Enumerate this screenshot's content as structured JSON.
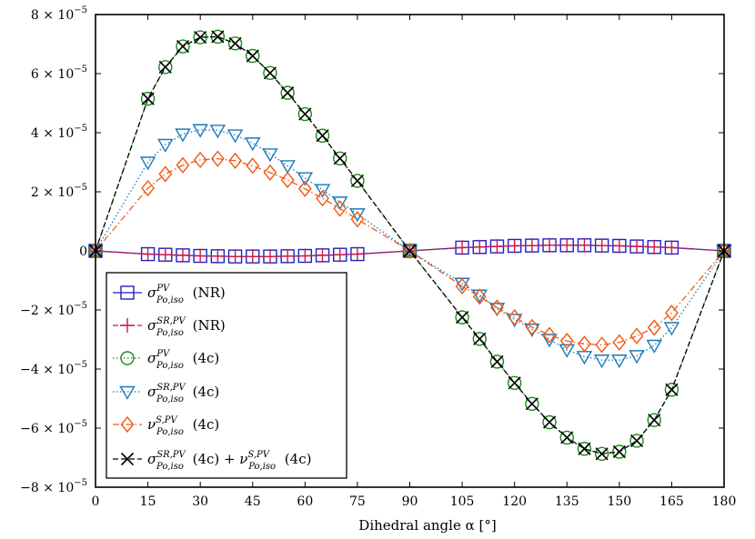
{
  "chart_data": {
    "type": "line",
    "xlabel": "Dihedral angle α [°]",
    "ylabel": "",
    "xlim": [
      0,
      180
    ],
    "ylim": [
      -8e-05,
      8e-05
    ],
    "x_ticks": [
      0,
      15,
      30,
      45,
      60,
      75,
      90,
      105,
      120,
      135,
      150,
      165,
      180
    ],
    "y_ticks": [
      {
        "value": 8e-05,
        "mant": "8 × 10",
        "exp": "−5"
      },
      {
        "value": 6e-05,
        "mant": "6 × 10",
        "exp": "−5"
      },
      {
        "value": 4e-05,
        "mant": "4 × 10",
        "exp": "−5"
      },
      {
        "value": 2e-05,
        "mant": "2 × 10",
        "exp": "−5"
      },
      {
        "value": 0,
        "mant": "0",
        "exp": ""
      },
      {
        "value": -2e-05,
        "mant": "−2 × 10",
        "exp": "−5"
      },
      {
        "value": -4e-05,
        "mant": "−4 × 10",
        "exp": "−5"
      },
      {
        "value": -6e-05,
        "mant": "−6 × 10",
        "exp": "−5"
      },
      {
        "value": -8e-05,
        "mant": "−8 × 10",
        "exp": "−5"
      }
    ],
    "grid": false,
    "legend_position": "bottom-left",
    "series": [
      {
        "name": "σ^{PV}_{Po,iso} (NR)",
        "label": {
          "sym": "σ",
          "sup": "PV",
          "sub": "Po,iso",
          "tail": "(NR)"
        },
        "color": "#1f1fc8",
        "marker": "square",
        "linestyle": "solid",
        "x": [
          0,
          15,
          20,
          25,
          30,
          35,
          40,
          45,
          50,
          55,
          60,
          65,
          70,
          75,
          90,
          105,
          110,
          115,
          120,
          125,
          130,
          135,
          140,
          145,
          150,
          155,
          160,
          165,
          180
        ],
        "y": [
          0,
          -1.1e-06,
          -1.3e-06,
          -1.5e-06,
          -1.7e-06,
          -1.8e-06,
          -1.9e-06,
          -1.9e-06,
          -1.9e-06,
          -1.8e-06,
          -1.7e-06,
          -1.5e-06,
          -1.3e-06,
          -1.1e-06,
          0,
          1.1e-06,
          1.3e-06,
          1.5e-06,
          1.7e-06,
          1.8e-06,
          1.9e-06,
          1.9e-06,
          1.9e-06,
          1.8e-06,
          1.7e-06,
          1.5e-06,
          1.3e-06,
          1.1e-06,
          0
        ]
      },
      {
        "name": "σ^{SR,PV}_{Po,iso} (NR)",
        "label": {
          "sym": "σ",
          "sup": "SR,PV",
          "sub": "Po,iso",
          "tail": "(NR)"
        },
        "color": "#cc1a4a",
        "marker": "plus",
        "linestyle": "dashed",
        "x": [
          0,
          15,
          20,
          25,
          30,
          35,
          40,
          45,
          50,
          55,
          60,
          65,
          70,
          75,
          90,
          105,
          110,
          115,
          120,
          125,
          130,
          135,
          140,
          145,
          150,
          155,
          160,
          165,
          180
        ],
        "y": [
          0,
          -1.1e-06,
          -1.3e-06,
          -1.5e-06,
          -1.7e-06,
          -1.8e-06,
          -1.9e-06,
          -1.9e-06,
          -1.9e-06,
          -1.8e-06,
          -1.7e-06,
          -1.5e-06,
          -1.3e-06,
          -1.1e-06,
          0,
          1.1e-06,
          1.3e-06,
          1.5e-06,
          1.7e-06,
          1.8e-06,
          1.9e-06,
          1.9e-06,
          1.9e-06,
          1.8e-06,
          1.7e-06,
          1.5e-06,
          1.3e-06,
          1.1e-06,
          0
        ]
      },
      {
        "name": "σ^{PV}_{Po,iso} (4c)",
        "label": {
          "sym": "σ",
          "sup": "PV",
          "sub": "Po,iso",
          "tail": "(4c)"
        },
        "color": "#1a8a1a",
        "marker": "circle",
        "linestyle": "dotted",
        "x": [
          0,
          15,
          20,
          25,
          30,
          35,
          40,
          45,
          50,
          55,
          60,
          65,
          70,
          75,
          90,
          105,
          110,
          115,
          120,
          125,
          130,
          135,
          140,
          145,
          150,
          155,
          160,
          165,
          180
        ],
        "y": [
          0,
          5.15e-05,
          6.22e-05,
          6.92e-05,
          7.23e-05,
          7.25e-05,
          7.02e-05,
          6.6e-05,
          6.02e-05,
          5.35e-05,
          4.63e-05,
          3.9e-05,
          3.13e-05,
          2.37e-05,
          0,
          -2.25e-05,
          -2.98e-05,
          -3.75e-05,
          -4.47e-05,
          -5.18e-05,
          -5.8e-05,
          -6.32e-05,
          -6.7e-05,
          -6.87e-05,
          -6.8e-05,
          -6.43e-05,
          -5.73e-05,
          -4.7e-05,
          0
        ]
      },
      {
        "name": "σ^{SR,PV}_{Po,iso} (4c)",
        "label": {
          "sym": "σ",
          "sup": "SR,PV",
          "sub": "Po,iso",
          "tail": "(4c)"
        },
        "color": "#1a7ab8",
        "marker": "triangle-down",
        "linestyle": "dotted",
        "x": [
          0,
          15,
          20,
          25,
          30,
          35,
          40,
          45,
          50,
          55,
          60,
          65,
          70,
          75,
          90,
          105,
          110,
          115,
          120,
          125,
          130,
          135,
          140,
          145,
          150,
          155,
          160,
          165,
          180
        ],
        "y": [
          0,
          3e-05,
          3.6e-05,
          3.95e-05,
          4.1e-05,
          4.08e-05,
          3.92e-05,
          3.65e-05,
          3.28e-05,
          2.88e-05,
          2.47e-05,
          2.07e-05,
          1.65e-05,
          1.25e-05,
          0,
          -1.1e-05,
          -1.5e-05,
          -1.95e-05,
          -2.32e-05,
          -2.65e-05,
          -3e-05,
          -3.35e-05,
          -3.58e-05,
          -3.7e-05,
          -3.7e-05,
          -3.55e-05,
          -3.2e-05,
          -2.6e-05,
          0
        ]
      },
      {
        "name": "ν^{S,PV}_{Po,iso} (4c)",
        "label": {
          "sym": "ν",
          "sup": "S,PV",
          "sub": "Po,iso",
          "tail": "(4c)"
        },
        "color": "#f05a14",
        "marker": "diamond",
        "linestyle": "dashdot",
        "x": [
          0,
          15,
          20,
          25,
          30,
          35,
          40,
          45,
          50,
          55,
          60,
          65,
          70,
          75,
          90,
          105,
          110,
          115,
          120,
          125,
          130,
          135,
          140,
          145,
          150,
          155,
          160,
          165,
          180
        ],
        "y": [
          0,
          2.12e-05,
          2.6e-05,
          2.9e-05,
          3.08e-05,
          3.12e-05,
          3.05e-05,
          2.88e-05,
          2.65e-05,
          2.4e-05,
          2.1e-05,
          1.78e-05,
          1.43e-05,
          1.07e-05,
          0,
          -1.2e-05,
          -1.55e-05,
          -1.92e-05,
          -2.25e-05,
          -2.58e-05,
          -2.85e-05,
          -3.05e-05,
          -3.15e-05,
          -3.18e-05,
          -3.1e-05,
          -2.88e-05,
          -2.6e-05,
          -2.1e-05,
          0
        ]
      },
      {
        "name": "σ^{SR,PV}_{Po,iso} (4c) + ν^{S,PV}_{Po,iso} (4c)",
        "label": {
          "sym": "σ",
          "sup": "SR,PV",
          "sub": "Po,iso",
          "tail": "(4c) +",
          "sym2": "ν",
          "sup2": "S,PV",
          "sub2": "Po,iso",
          "tail2": "(4c)"
        },
        "color": "#000000",
        "marker": "x",
        "linestyle": "dashed",
        "x": [
          0,
          15,
          20,
          25,
          30,
          35,
          40,
          45,
          50,
          55,
          60,
          65,
          70,
          75,
          90,
          105,
          110,
          115,
          120,
          125,
          130,
          135,
          140,
          145,
          150,
          155,
          160,
          165,
          180
        ],
        "y": [
          0,
          5.15e-05,
          6.22e-05,
          6.92e-05,
          7.23e-05,
          7.25e-05,
          7.02e-05,
          6.6e-05,
          6.02e-05,
          5.35e-05,
          4.63e-05,
          3.9e-05,
          3.13e-05,
          2.37e-05,
          0,
          -2.25e-05,
          -2.98e-05,
          -3.75e-05,
          -4.47e-05,
          -5.18e-05,
          -5.8e-05,
          -6.32e-05,
          -6.7e-05,
          -6.87e-05,
          -6.8e-05,
          -6.43e-05,
          -5.73e-05,
          -4.7e-05,
          0
        ]
      }
    ]
  }
}
